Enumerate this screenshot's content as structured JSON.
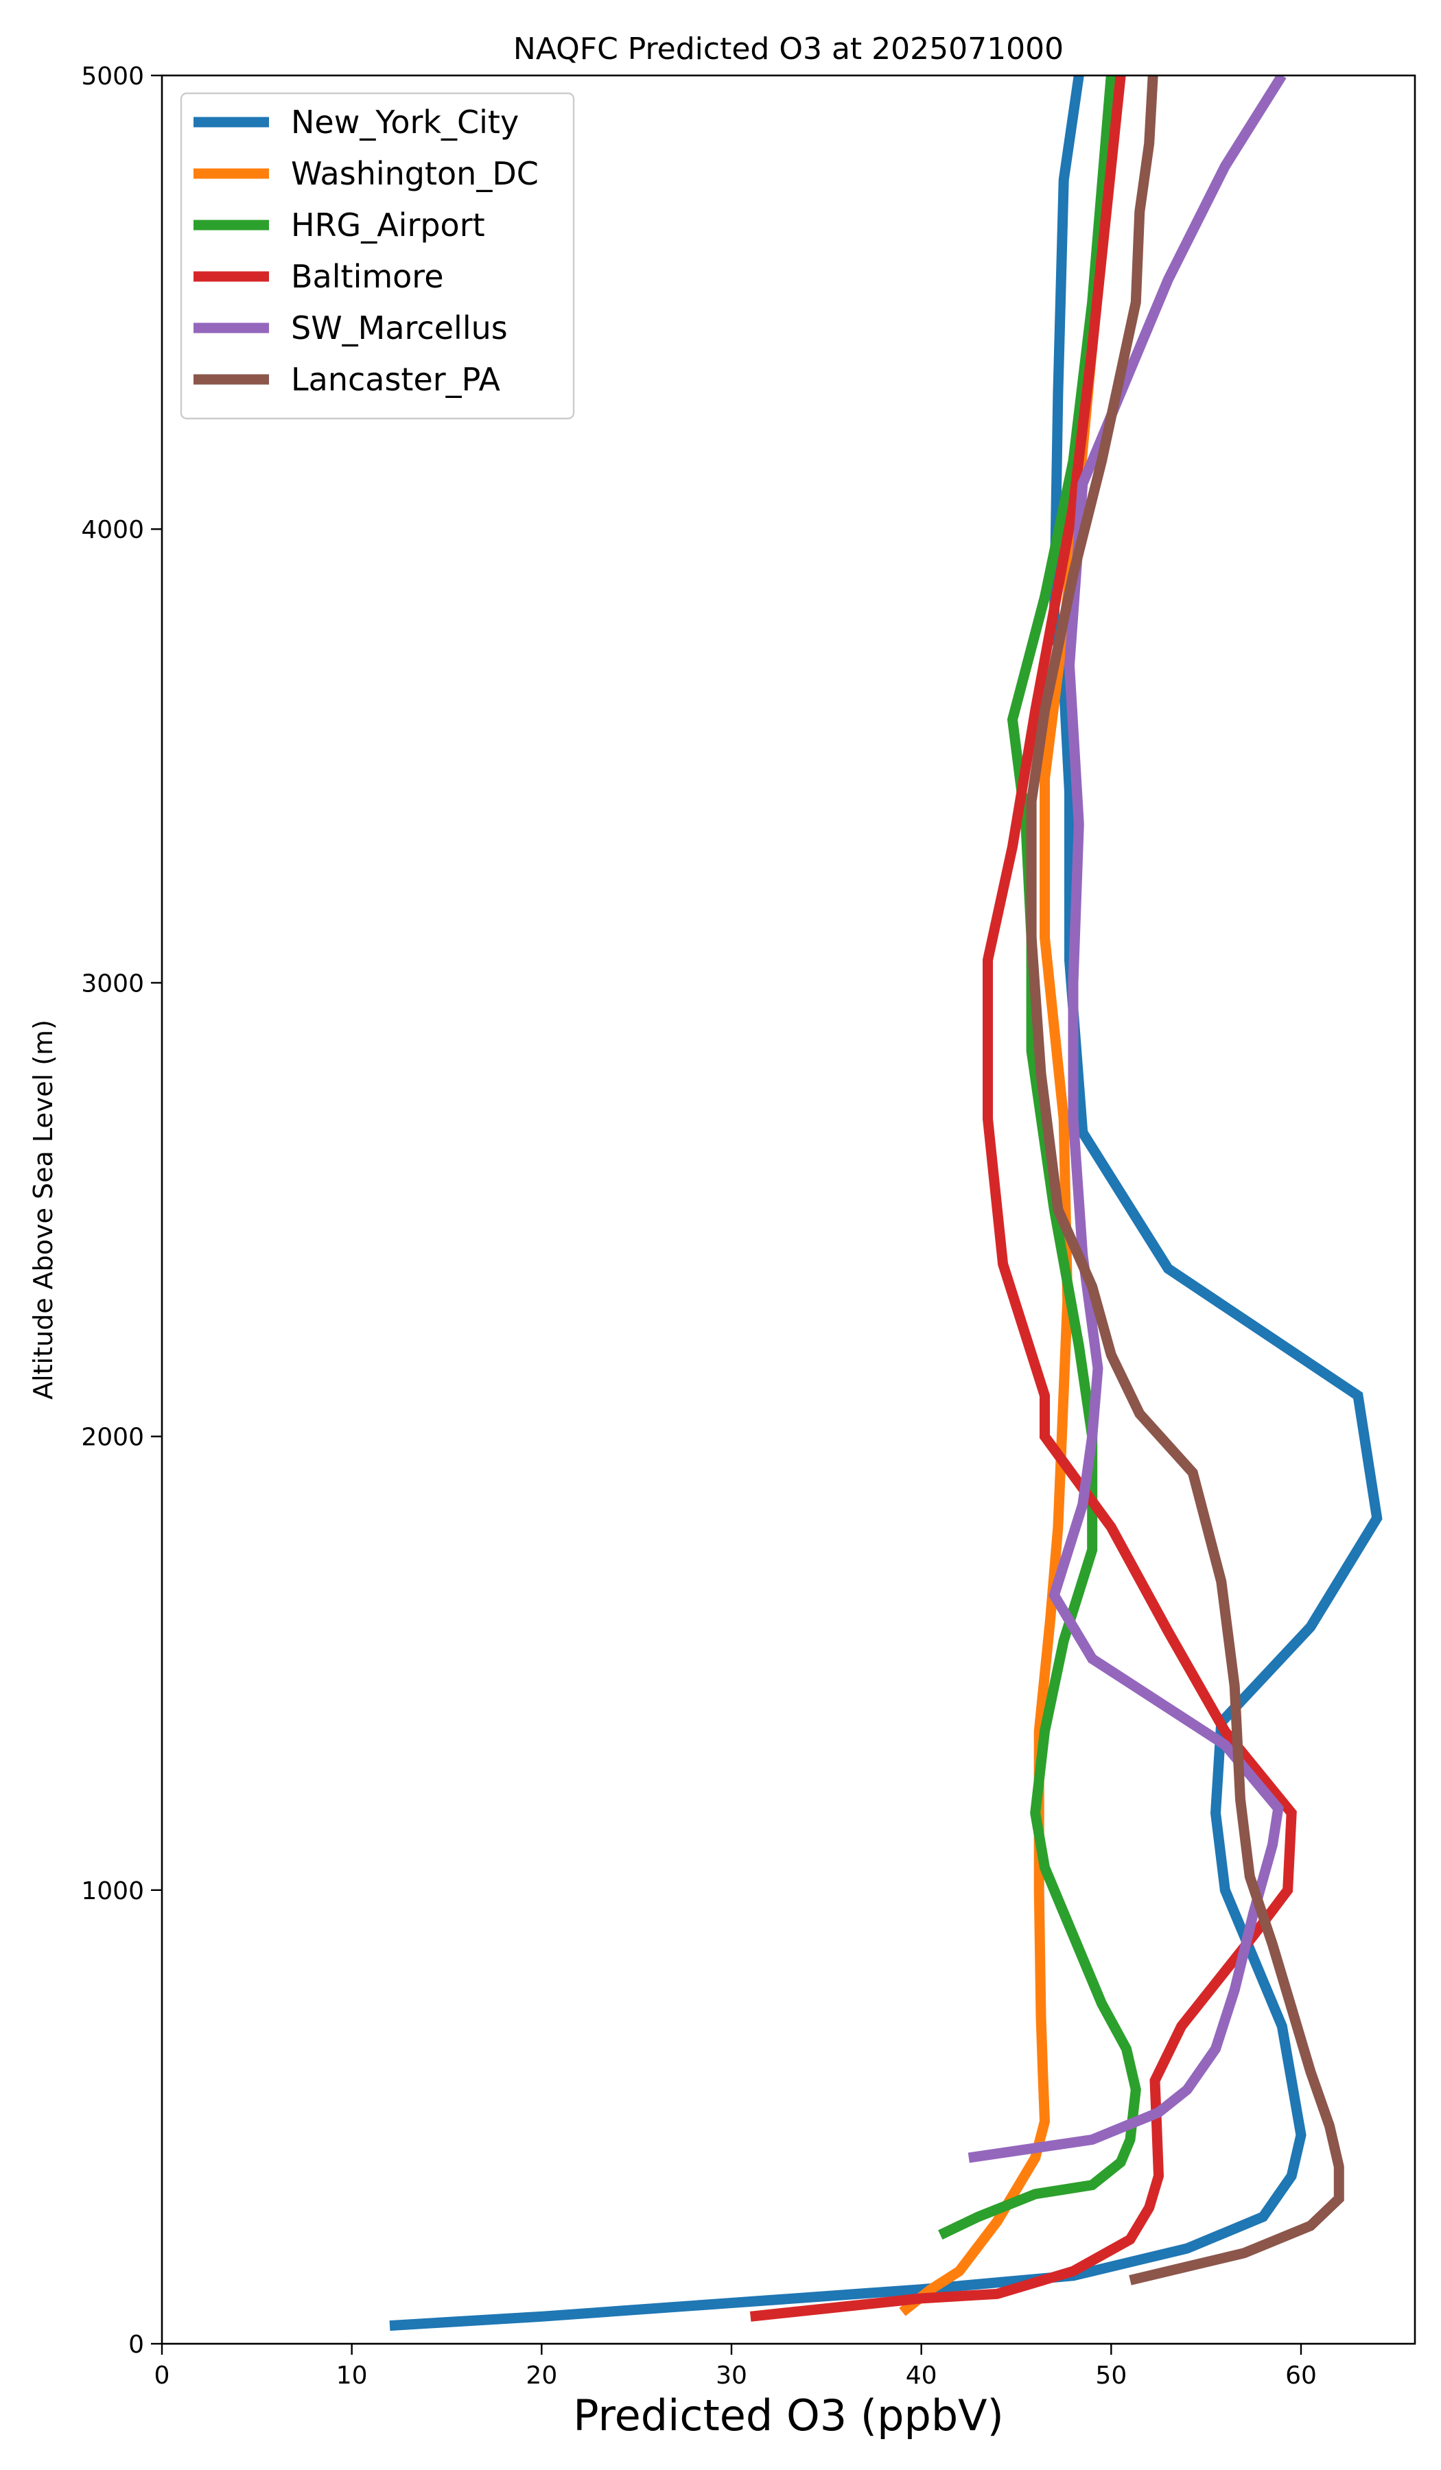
{
  "chart_data": {
    "type": "line",
    "title": "NAQFC Predicted O3 at 2025071000",
    "xlabel": "Predicted O3 (ppbV)",
    "ylabel": "Altitude Above Sea Level (m)",
    "xlim": [
      0,
      66
    ],
    "ylim": [
      0,
      5000
    ],
    "xticks": [
      0,
      10,
      20,
      30,
      40,
      50,
      60
    ],
    "yticks": [
      0,
      1000,
      2000,
      3000,
      4000,
      5000
    ],
    "grid": false,
    "legend_position": "upper-left",
    "series": [
      {
        "name": "New_York_City",
        "color": "#1f77b4",
        "points": [
          [
            12,
            40
          ],
          [
            20,
            60
          ],
          [
            30,
            90
          ],
          [
            40,
            120
          ],
          [
            48,
            150
          ],
          [
            54,
            210
          ],
          [
            58,
            280
          ],
          [
            59.5,
            370
          ],
          [
            60,
            460
          ],
          [
            59.5,
            580
          ],
          [
            59,
            700
          ],
          [
            57.5,
            850
          ],
          [
            56,
            1000
          ],
          [
            55.5,
            1170
          ],
          [
            55.8,
            1370
          ],
          [
            60.5,
            1580
          ],
          [
            64,
            1820
          ],
          [
            63,
            2090
          ],
          [
            53,
            2370
          ],
          [
            48.5,
            2670
          ],
          [
            47.8,
            3050
          ],
          [
            47.8,
            3420
          ],
          [
            47.5,
            3660
          ],
          [
            47,
            3800
          ],
          [
            47.2,
            4300
          ],
          [
            47.5,
            4770
          ],
          [
            48.3,
            5000
          ]
        ]
      },
      {
        "name": "Washington_DC",
        "color": "#ff7f0e",
        "points": [
          [
            39,
            70
          ],
          [
            40.5,
            120
          ],
          [
            42,
            160
          ],
          [
            44,
            270
          ],
          [
            46,
            410
          ],
          [
            46.5,
            490
          ],
          [
            46.4,
            600
          ],
          [
            46.3,
            720
          ],
          [
            46.2,
            1000
          ],
          [
            46.2,
            1350
          ],
          [
            46.8,
            1600
          ],
          [
            47.2,
            1800
          ],
          [
            47.4,
            2000
          ],
          [
            47.7,
            2300
          ],
          [
            47.5,
            2700
          ],
          [
            46.5,
            3100
          ],
          [
            46.5,
            3450
          ],
          [
            48,
            3950
          ],
          [
            49,
            4400
          ],
          [
            49.5,
            4700
          ],
          [
            50,
            5000
          ]
        ]
      },
      {
        "name": "HRG_Airport",
        "color": "#2ca02c",
        "points": [
          [
            41,
            240
          ],
          [
            43,
            280
          ],
          [
            46,
            330
          ],
          [
            49,
            350
          ],
          [
            50.5,
            400
          ],
          [
            51,
            450
          ],
          [
            51.3,
            560
          ],
          [
            50.8,
            650
          ],
          [
            49.5,
            750
          ],
          [
            48,
            900
          ],
          [
            46.5,
            1050
          ],
          [
            46,
            1170
          ],
          [
            46.5,
            1350
          ],
          [
            47.5,
            1550
          ],
          [
            49,
            1750
          ],
          [
            49,
            2000
          ],
          [
            48.3,
            2200
          ],
          [
            47,
            2500
          ],
          [
            45.8,
            2850
          ],
          [
            45.8,
            3100
          ],
          [
            45.5,
            3350
          ],
          [
            44.8,
            3580
          ],
          [
            46.5,
            3850
          ],
          [
            48,
            4150
          ],
          [
            49,
            4500
          ],
          [
            50,
            5000
          ]
        ]
      },
      {
        "name": "Baltimore",
        "color": "#d62728",
        "points": [
          [
            31,
            60
          ],
          [
            40,
            100
          ],
          [
            44,
            110
          ],
          [
            48,
            160
          ],
          [
            51,
            230
          ],
          [
            52,
            300
          ],
          [
            52.5,
            370
          ],
          [
            52.4,
            480
          ],
          [
            52.3,
            580
          ],
          [
            53.7,
            700
          ],
          [
            57.5,
            900
          ],
          [
            59.3,
            1000
          ],
          [
            59.5,
            1170
          ],
          [
            56,
            1350
          ],
          [
            53,
            1570
          ],
          [
            50,
            1800
          ],
          [
            46.5,
            2000
          ],
          [
            46.5,
            2090
          ],
          [
            44.3,
            2380
          ],
          [
            43.5,
            2700
          ],
          [
            43.5,
            3050
          ],
          [
            44.8,
            3300
          ],
          [
            46,
            3600
          ],
          [
            48,
            4050
          ],
          [
            49,
            4400
          ],
          [
            50.5,
            5000
          ]
        ]
      },
      {
        "name": "SW_Marcellus",
        "color": "#9467bd",
        "points": [
          [
            42.5,
            410
          ],
          [
            49,
            450
          ],
          [
            52.5,
            510
          ],
          [
            54,
            560
          ],
          [
            55.5,
            650
          ],
          [
            56.5,
            780
          ],
          [
            57.5,
            950
          ],
          [
            58.5,
            1100
          ],
          [
            58.8,
            1180
          ],
          [
            56,
            1320
          ],
          [
            49,
            1510
          ],
          [
            47,
            1650
          ],
          [
            48.5,
            1850
          ],
          [
            49,
            2000
          ],
          [
            49.3,
            2150
          ],
          [
            48.5,
            2400
          ],
          [
            48,
            2700
          ],
          [
            48,
            3000
          ],
          [
            48.3,
            3350
          ],
          [
            47.8,
            3700
          ],
          [
            48.5,
            4100
          ],
          [
            51.5,
            4400
          ],
          [
            53,
            4550
          ],
          [
            56,
            4800
          ],
          [
            59,
            5000
          ]
        ]
      },
      {
        "name": "Lancaster_PA",
        "color": "#8c564b",
        "points": [
          [
            51,
            140
          ],
          [
            57,
            200
          ],
          [
            60.5,
            260
          ],
          [
            62,
            320
          ],
          [
            62,
            390
          ],
          [
            61.5,
            480
          ],
          [
            60.5,
            600
          ],
          [
            59.5,
            740
          ],
          [
            58.5,
            880
          ],
          [
            57.3,
            1030
          ],
          [
            56.8,
            1200
          ],
          [
            56.5,
            1450
          ],
          [
            55.8,
            1680
          ],
          [
            54.3,
            1920
          ],
          [
            51.5,
            2050
          ],
          [
            50,
            2180
          ],
          [
            49,
            2330
          ],
          [
            47.2,
            2500
          ],
          [
            46.3,
            2800
          ],
          [
            45.8,
            3100
          ],
          [
            45.8,
            3400
          ],
          [
            46.5,
            3600
          ],
          [
            48,
            3900
          ],
          [
            49.5,
            4150
          ],
          [
            51.3,
            4500
          ],
          [
            51.5,
            4700
          ],
          [
            52,
            4850
          ],
          [
            52.2,
            5000
          ]
        ]
      }
    ]
  }
}
